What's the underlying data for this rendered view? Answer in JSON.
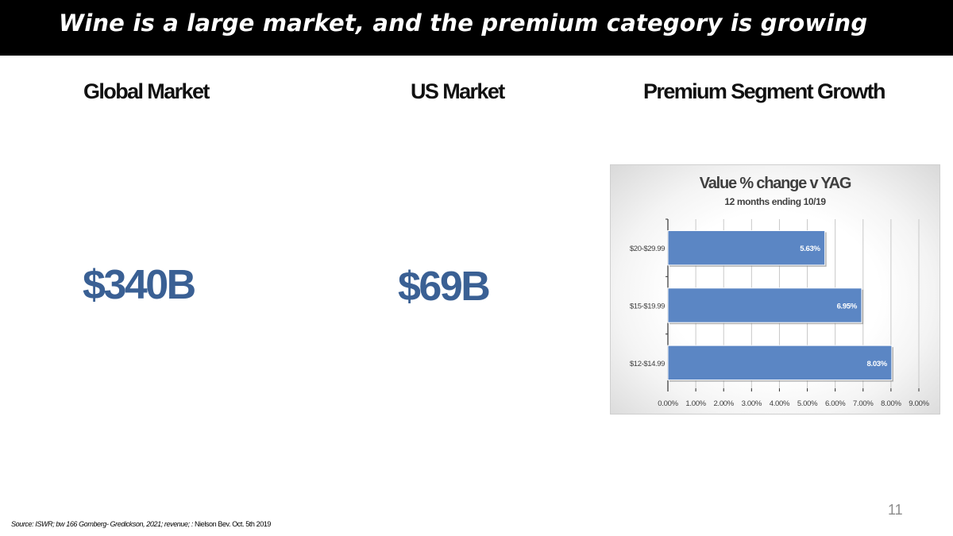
{
  "slide": {
    "title": "Wine is a large market, and the premium category is growing",
    "page_number": "11"
  },
  "columns": [
    {
      "heading": "Global Market",
      "value": "$340B"
    },
    {
      "heading": "US Market",
      "value": "$69B"
    },
    {
      "heading": "Premium Segment Growth"
    }
  ],
  "source": {
    "italic_part": "Source: ISWR; bw 166 Gomberg- Gredickson, 2021; revenue; :",
    "plain_part": "Nielson Bev. Oct. 5th 2019"
  },
  "colors": {
    "title_bar": "#000000",
    "value_text": "#3a6094",
    "bar_fill": "#5b86c4"
  },
  "chart_data": {
    "type": "bar",
    "orientation": "horizontal",
    "title": "Value % change v YAG",
    "subtitle": "12 months ending 10/19",
    "categories": [
      "$20-$29.99",
      "$15-$19.99",
      "$12-$14.99"
    ],
    "values": [
      5.63,
      6.95,
      8.03
    ],
    "data_labels": [
      "5.63%",
      "6.95%",
      "8.03%"
    ],
    "xlim": [
      0,
      9
    ],
    "x_ticks": [
      "0.00%",
      "1.00%",
      "2.00%",
      "3.00%",
      "4.00%",
      "5.00%",
      "6.00%",
      "7.00%",
      "8.00%",
      "9.00%"
    ],
    "grid": "vertical",
    "legend": "none"
  }
}
